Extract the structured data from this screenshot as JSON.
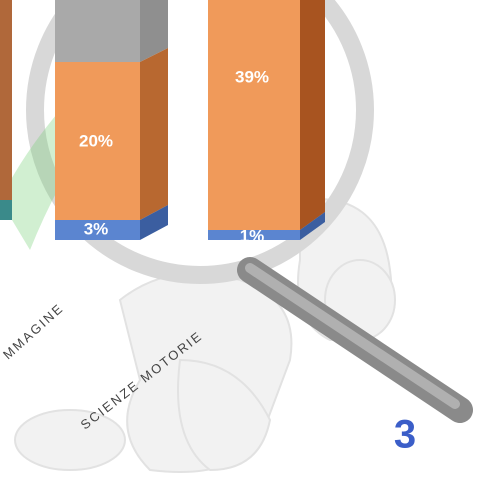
{
  "bars": {
    "left_top": "20%",
    "left_bottom": "3%",
    "right_top": "39%",
    "right_bottom": "1%"
  },
  "captions": {
    "image": "MMAGINE",
    "sport": "SCIENZE MOTORIE"
  },
  "badge": "3"
}
